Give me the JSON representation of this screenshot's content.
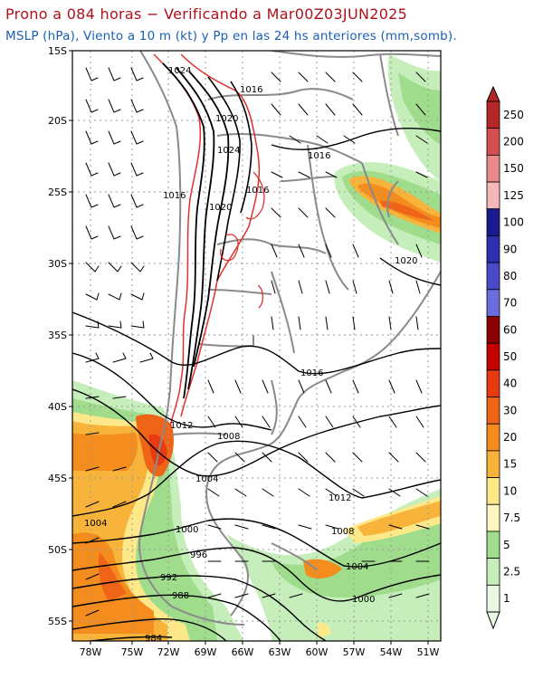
{
  "header": {
    "title": "Prono a 084 horas − Verificando a Mar00Z03JUN2025",
    "subtitle": "MSLP (hPa), Viento a 10 m (kt) y Pp en las 24 hs anteriores (mm,somb)."
  },
  "map": {
    "lat_labels": [
      "15S",
      "20S",
      "25S",
      "30S",
      "35S",
      "40S",
      "45S",
      "50S",
      "55S"
    ],
    "lon_labels": [
      "78W",
      "75W",
      "72W",
      "69W",
      "66W",
      "63W",
      "60W",
      "57W",
      "54W",
      "51W"
    ],
    "isobar_labels": [
      {
        "text": "1024"
      },
      {
        "text": "1016"
      },
      {
        "text": "1020"
      },
      {
        "text": "1024"
      },
      {
        "text": "1016"
      },
      {
        "text": "1016"
      },
      {
        "text": "1020"
      },
      {
        "text": "1016"
      },
      {
        "text": "1020"
      },
      {
        "text": "1016"
      },
      {
        "text": "1012"
      },
      {
        "text": "1008"
      },
      {
        "text": "1004"
      },
      {
        "text": "1012"
      },
      {
        "text": "1004"
      },
      {
        "text": "1008"
      },
      {
        "text": "1000"
      },
      {
        "text": "1004"
      },
      {
        "text": "996"
      },
      {
        "text": "1000"
      },
      {
        "text": "992"
      },
      {
        "text": "988"
      },
      {
        "text": "984"
      }
    ]
  },
  "colorbar": {
    "levels": [
      "250",
      "200",
      "150",
      "125",
      "100",
      "90",
      "80",
      "70",
      "60",
      "50",
      "40",
      "30",
      "20",
      "15",
      "10",
      "7.5",
      "5",
      "2.5",
      "1"
    ],
    "colors": [
      "#b52727",
      "#d45050",
      "#e88b8b",
      "#f4b8b8",
      "#1a1a8c",
      "#2e2eb0",
      "#4a4ac8",
      "#6c6cdc",
      "#8b0000",
      "#c40000",
      "#e83a10",
      "#f06418",
      "#f48c1e",
      "#f8b43a",
      "#fde98a",
      "#fff6c0",
      "#9fdc8c",
      "#c6eebb",
      "#e8f8e2"
    ]
  }
}
